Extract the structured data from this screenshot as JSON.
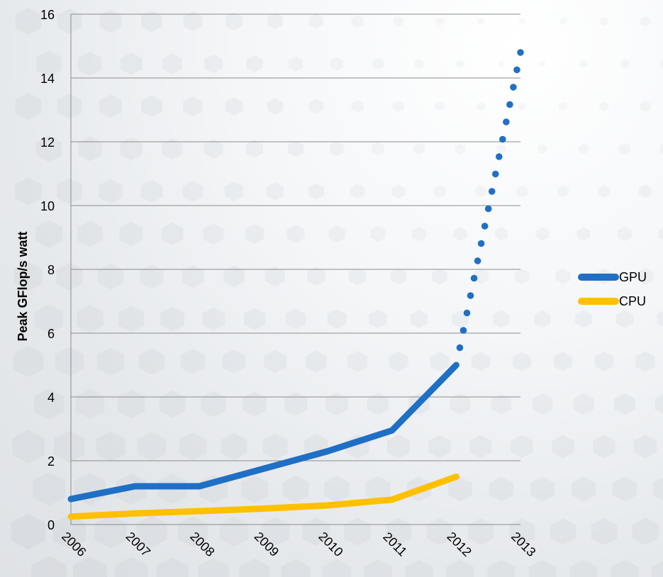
{
  "chart_data": {
    "type": "line",
    "title": "",
    "xlabel": "",
    "ylabel": "Peak GFlop/s watt",
    "categories": [
      "2006",
      "2007",
      "2008",
      "2009",
      "2010",
      "2011",
      "2012",
      "2013"
    ],
    "ylim": [
      0,
      16
    ],
    "yticks": [
      0,
      2,
      4,
      6,
      8,
      10,
      12,
      14,
      16
    ],
    "grid": "horizontal",
    "legend_position": "right",
    "series": [
      {
        "name": "GPU",
        "color": "#1f6fc5",
        "values": [
          0.8,
          1.2,
          1.2,
          1.75,
          2.3,
          2.95,
          5.0,
          null
        ],
        "projection": {
          "from": "2012",
          "to": "2013",
          "values": [
            5.0,
            14.8
          ],
          "style": "dotted"
        }
      },
      {
        "name": "CPU",
        "color": "#ffc000",
        "values": [
          0.25,
          0.35,
          0.42,
          0.5,
          0.6,
          0.78,
          1.5,
          null
        ]
      }
    ]
  }
}
